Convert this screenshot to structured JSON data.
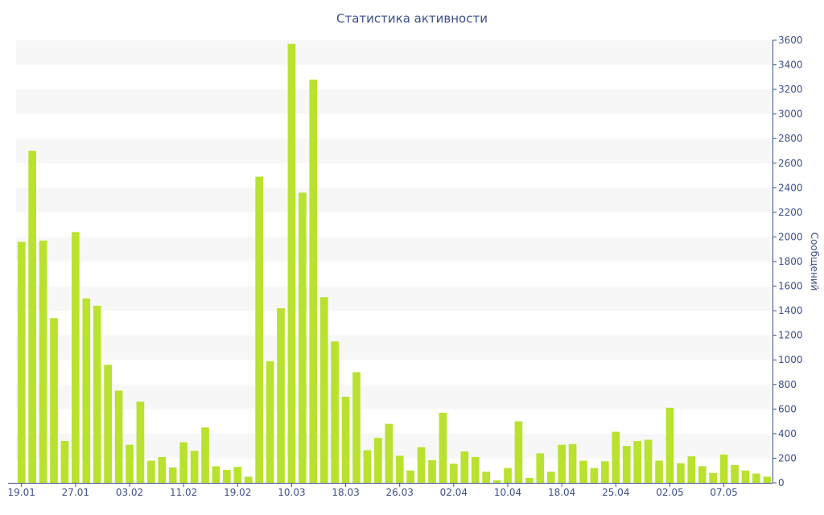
{
  "chart_data": {
    "type": "bar",
    "title": "Статистика активности",
    "xlabel": "",
    "ylabel": "Сообщений",
    "ylim": [
      0,
      3600
    ],
    "yticks": [
      0,
      200,
      400,
      600,
      800,
      1000,
      1200,
      1400,
      1600,
      1800,
      2000,
      2200,
      2400,
      2600,
      2800,
      3000,
      3200,
      3400,
      3600
    ],
    "y_axis_side": "right",
    "grid": "alternating horizontal bands",
    "bar_color": "#b8e22e",
    "band_color": "#f7f7f7",
    "text_color": "#3d4f8a",
    "xtick_labels": [
      {
        "index": 0,
        "label": "19.01"
      },
      {
        "index": 5,
        "label": "27.01"
      },
      {
        "index": 10,
        "label": "03.02"
      },
      {
        "index": 15,
        "label": "11.02"
      },
      {
        "index": 20,
        "label": "19.02"
      },
      {
        "index": 25,
        "label": "10.03"
      },
      {
        "index": 30,
        "label": "18.03"
      },
      {
        "index": 35,
        "label": "26.03"
      },
      {
        "index": 40,
        "label": "02.04"
      },
      {
        "index": 45,
        "label": "10.04"
      },
      {
        "index": 50,
        "label": "18.04"
      },
      {
        "index": 55,
        "label": "25.04"
      },
      {
        "index": 60,
        "label": "02.05"
      },
      {
        "index": 65,
        "label": "07.05"
      }
    ],
    "values": [
      1960,
      2700,
      1970,
      1340,
      340,
      2040,
      1500,
      1440,
      960,
      750,
      310,
      660,
      180,
      210,
      125,
      330,
      260,
      450,
      135,
      105,
      130,
      50,
      2490,
      990,
      1420,
      3570,
      2360,
      3280,
      1510,
      1150,
      700,
      900,
      265,
      365,
      480,
      220,
      100,
      290,
      185,
      570,
      155,
      255,
      210,
      90,
      20,
      120,
      500,
      40,
      240,
      90,
      310,
      315,
      180,
      120,
      175,
      415,
      300,
      340,
      350,
      180,
      610,
      160,
      215,
      135,
      80,
      230,
      145,
      100,
      75,
      50
    ]
  }
}
